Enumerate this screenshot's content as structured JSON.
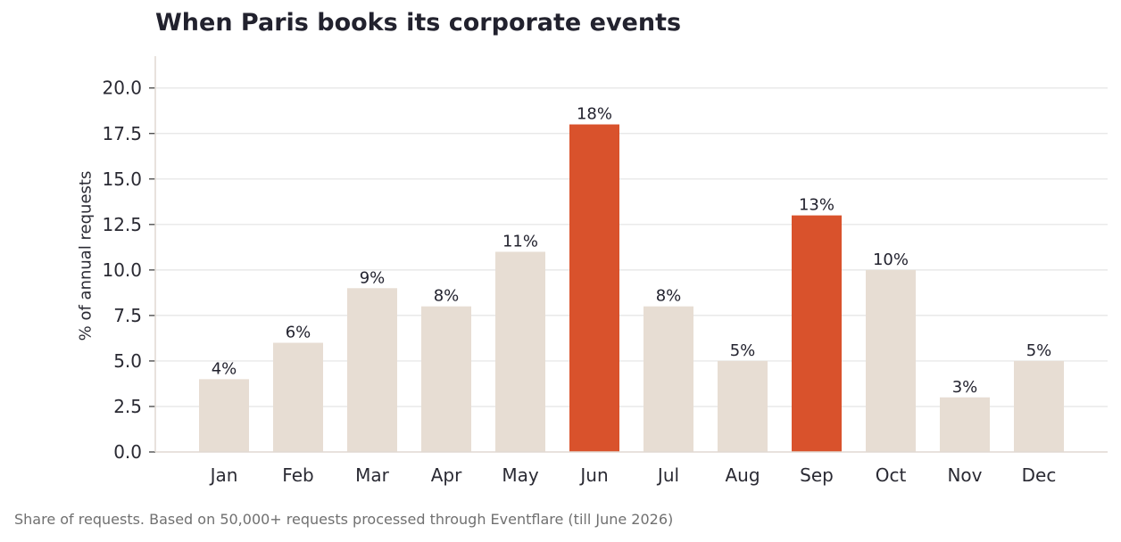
{
  "chart_data": {
    "type": "bar",
    "title": "When Paris books its corporate events",
    "ylabel": "% of annual requests",
    "xlabel": "",
    "categories": [
      "Jan",
      "Feb",
      "Mar",
      "Apr",
      "May",
      "Jun",
      "Jul",
      "Aug",
      "Sep",
      "Oct",
      "Nov",
      "Dec"
    ],
    "values": [
      4,
      6,
      9,
      8,
      11,
      18,
      8,
      5,
      13,
      10,
      3,
      5
    ],
    "value_labels": [
      "4%",
      "6%",
      "9%",
      "8%",
      "11%",
      "18%",
      "8%",
      "5%",
      "13%",
      "10%",
      "3%",
      "5%"
    ],
    "highlighted": [
      "Jun",
      "Sep"
    ],
    "ylim": [
      0,
      21.75
    ],
    "yticks": [
      0,
      2.5,
      5,
      7.5,
      10,
      12.5,
      15,
      17.5,
      20
    ],
    "ytick_labels": [
      "0.0",
      "2.5",
      "5.0",
      "7.5",
      "10.0",
      "12.5",
      "15.0",
      "17.5",
      "20.0"
    ],
    "grid": true,
    "colors": {
      "base": "#e7ddd3",
      "highlight": "#d9522c",
      "grid": "#e4e4e4",
      "axis": "#e0d9d2"
    }
  },
  "footnote": "Share of requests. Based on 50,000+ requests processed through Eventflare (till June 2026)"
}
